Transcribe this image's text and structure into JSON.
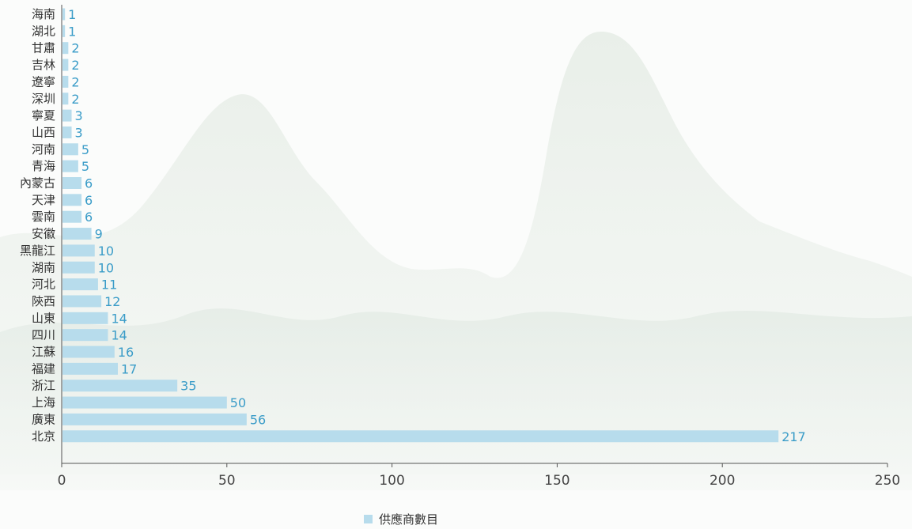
{
  "chart_data": {
    "type": "bar",
    "orientation": "horizontal",
    "categories": [
      "北京",
      "廣東",
      "上海",
      "浙江",
      "福建",
      "江蘇",
      "四川",
      "山東",
      "陝西",
      "河北",
      "湖南",
      "黑龍江",
      "安徽",
      "雲南",
      "天津",
      "內蒙古",
      "青海",
      "河南",
      "山西",
      "寧夏",
      "深圳",
      "遼寧",
      "吉林",
      "甘肅",
      "湖北",
      "海南"
    ],
    "series": [
      {
        "name": "供應商數目",
        "values": [
          217,
          56,
          50,
          35,
          17,
          16,
          14,
          14,
          12,
          11,
          10,
          10,
          9,
          6,
          6,
          6,
          5,
          5,
          3,
          3,
          2,
          2,
          2,
          2,
          1,
          1
        ]
      }
    ],
    "xlim": [
      0,
      250
    ],
    "xticks": [
      0,
      50,
      100,
      150,
      200,
      250
    ],
    "xlabel": "",
    "ylabel": "",
    "title": "",
    "legend_position": "bottom-center",
    "grid": false,
    "colors": {
      "bar": "#b7dcec",
      "value_label": "#3a9cc8",
      "axis": "#555555",
      "text": "#333333"
    }
  }
}
